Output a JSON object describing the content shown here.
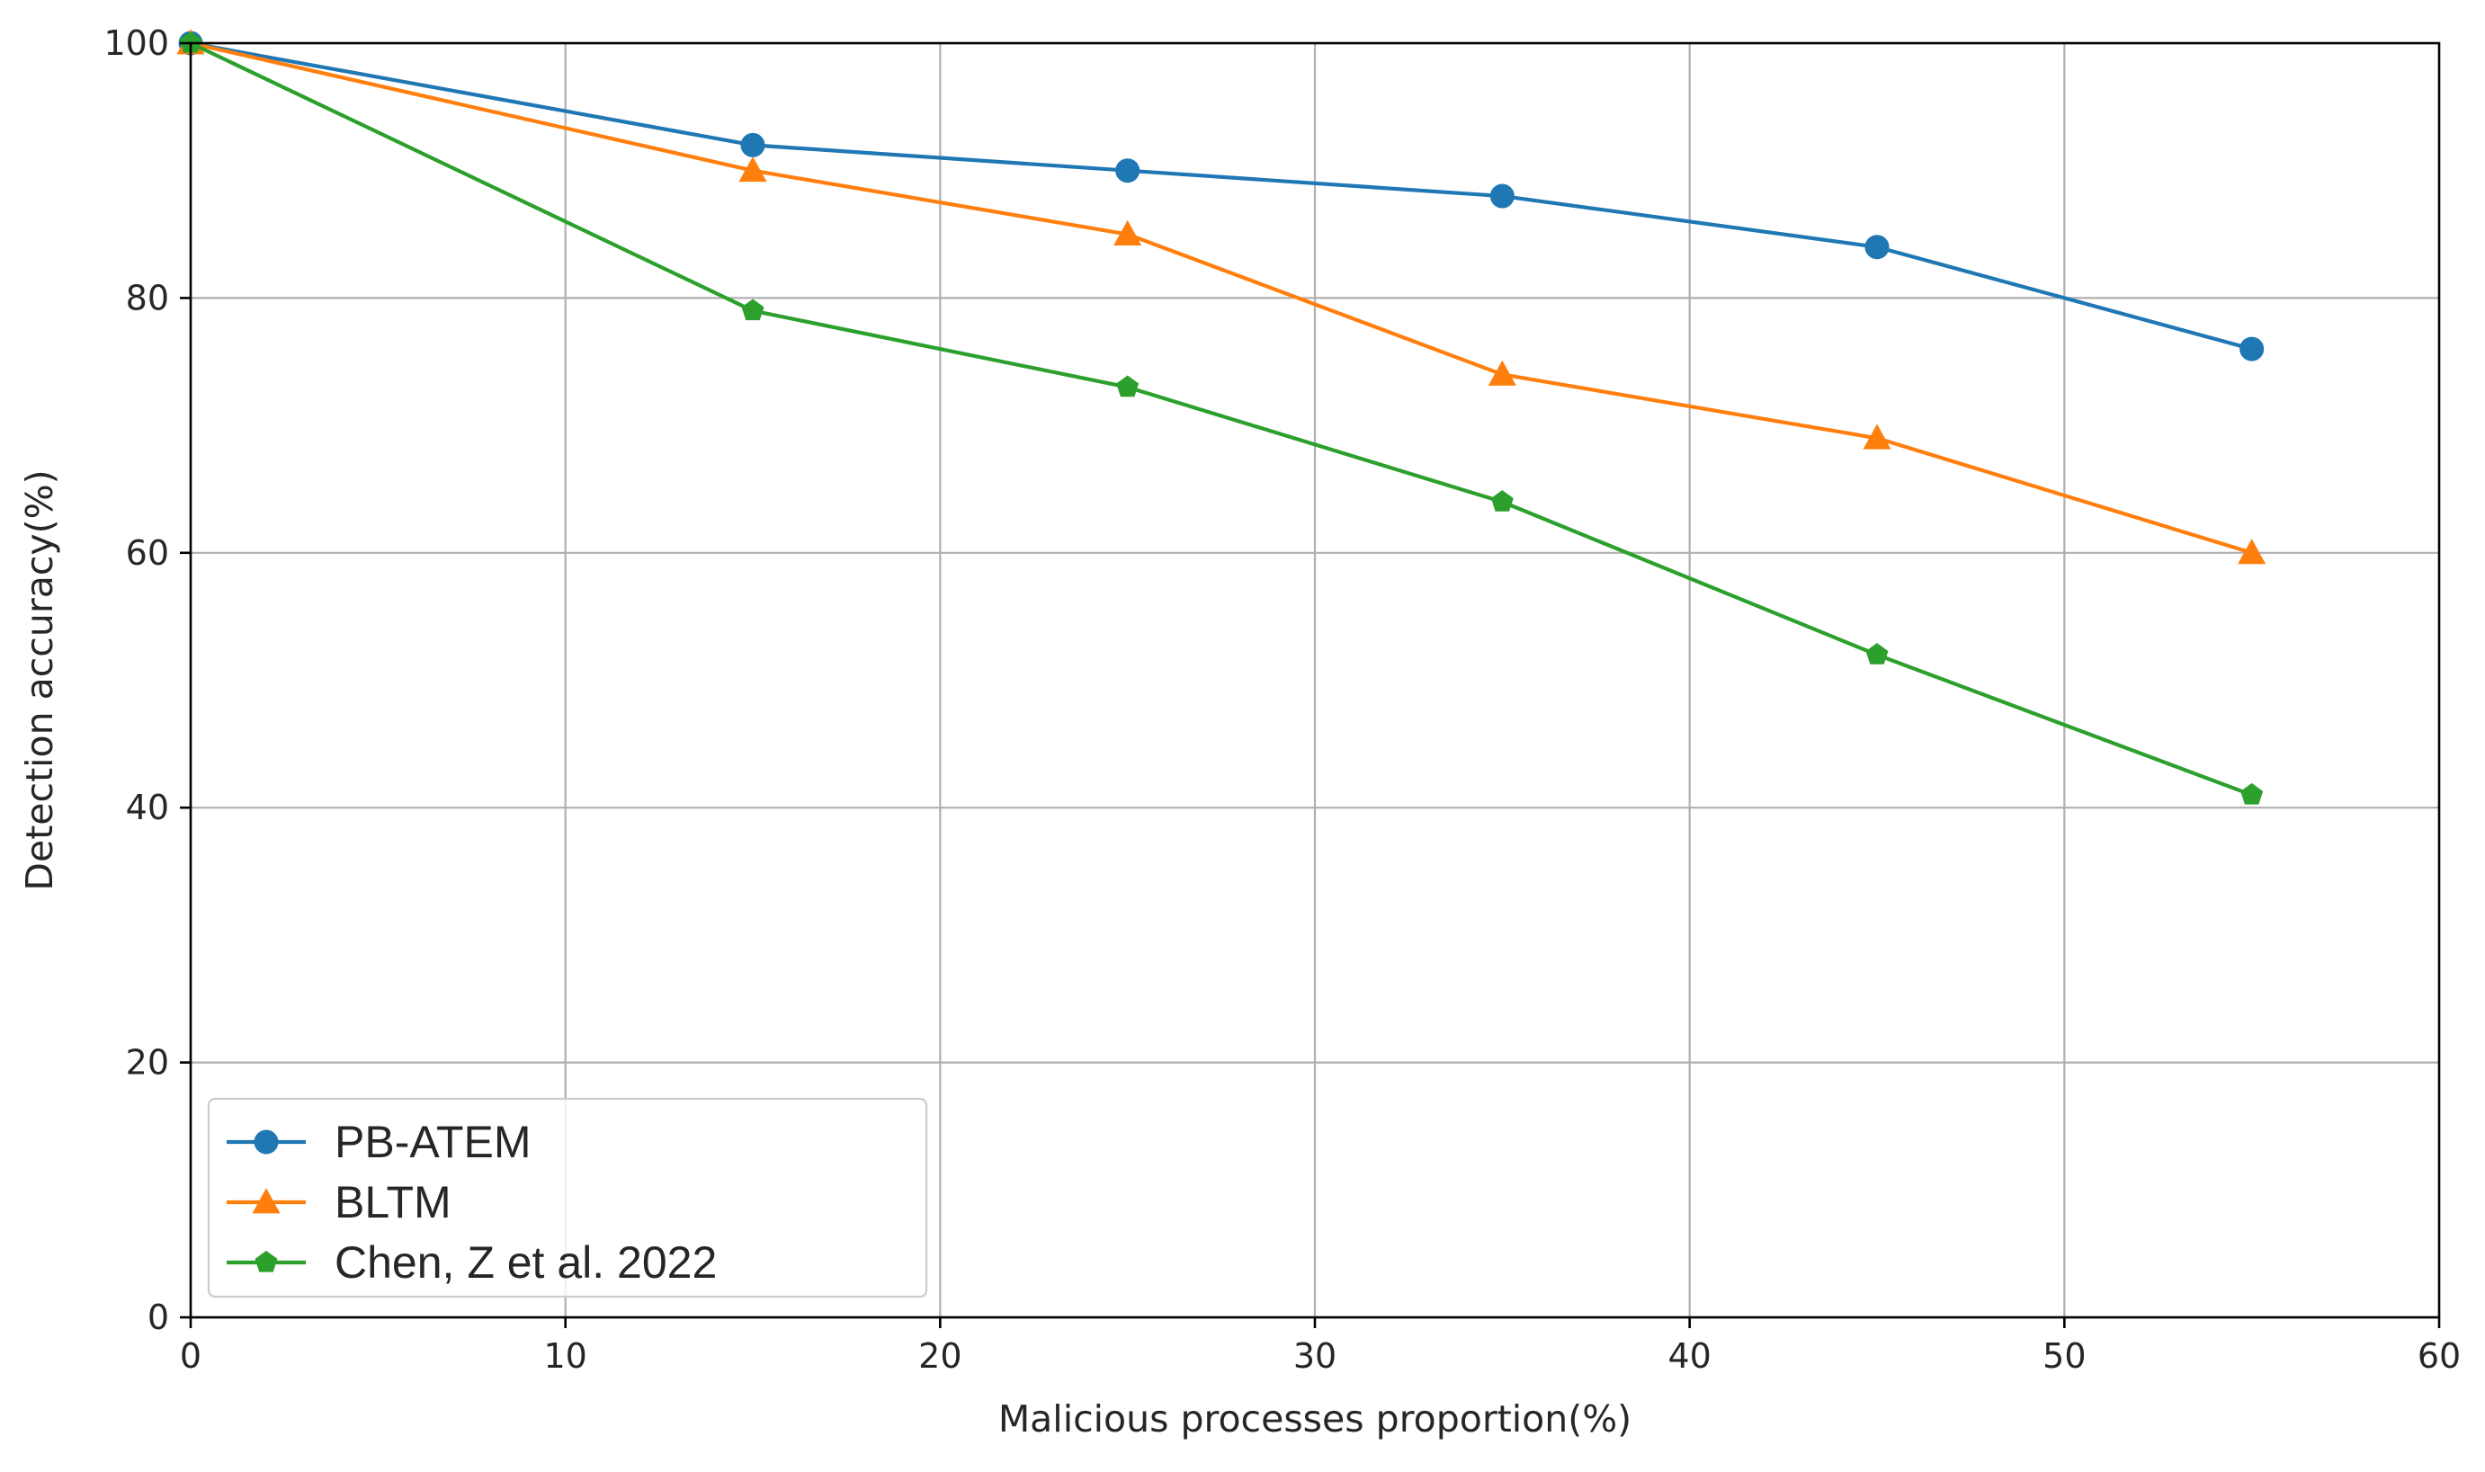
{
  "chart_data": {
    "type": "line",
    "title": "",
    "xlabel": "Malicious processes proportion(%)",
    "ylabel": "Detection accuracy(%)",
    "xlim": [
      0,
      60
    ],
    "ylim": [
      0,
      100
    ],
    "xticks": [
      "0",
      "10",
      "20",
      "30",
      "40",
      "50",
      "60"
    ],
    "yticks": [
      "0",
      "20",
      "40",
      "60",
      "80",
      "100"
    ],
    "grid": true,
    "legend_position": "lower-left",
    "x": [
      0,
      15,
      25,
      35,
      45,
      55
    ],
    "series": [
      {
        "name": "PB-ATEM",
        "values": [
          100,
          92,
          90,
          88,
          84,
          76
        ],
        "color": "#1f77b4",
        "marker": "circle"
      },
      {
        "name": "BLTM",
        "values": [
          100,
          90,
          85,
          74,
          69,
          60
        ],
        "color": "#ff7f0e",
        "marker": "triangle"
      },
      {
        "name": "Chen, Z et al. 2022",
        "values": [
          100,
          79,
          73,
          64,
          52,
          41
        ],
        "color": "#2ca02c",
        "marker": "pentagon"
      }
    ]
  }
}
